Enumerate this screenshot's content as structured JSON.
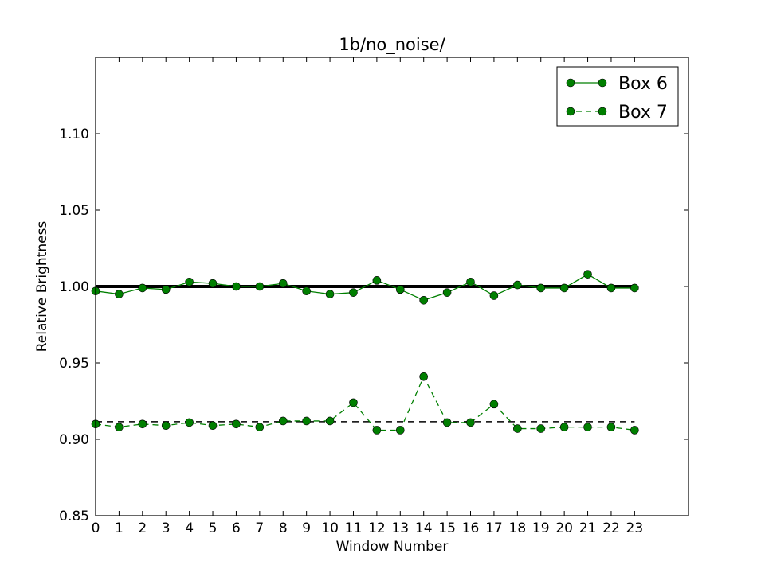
{
  "chart_data": {
    "type": "line",
    "title": "1b/no_noise/",
    "xlabel": "Window Number",
    "ylabel": "Relative Brightness",
    "xlim": [
      0,
      25.3
    ],
    "ylim": [
      0.85,
      1.15
    ],
    "x_ticks": [
      "0",
      "1",
      "2",
      "3",
      "4",
      "5",
      "6",
      "7",
      "8",
      "9",
      "10",
      "11",
      "12",
      "13",
      "14",
      "15",
      "16",
      "17",
      "18",
      "19",
      "20",
      "21",
      "22",
      "23"
    ],
    "y_ticks": [
      "0.85",
      "0.90",
      "0.95",
      "1.00",
      "1.05",
      "1.10"
    ],
    "x": [
      0,
      1,
      2,
      3,
      4,
      5,
      6,
      7,
      8,
      9,
      10,
      11,
      12,
      13,
      14,
      15,
      16,
      17,
      18,
      19,
      20,
      21,
      22,
      23
    ],
    "series": [
      {
        "name": "Box 6",
        "style": "solid",
        "color": "#007f00",
        "values": [
          0.997,
          0.995,
          0.999,
          0.998,
          1.003,
          1.002,
          1.0,
          1.0,
          1.002,
          0.997,
          0.995,
          0.996,
          1.004,
          0.998,
          0.991,
          0.996,
          1.003,
          0.994,
          1.001,
          0.999,
          0.999,
          1.008,
          0.999,
          0.999
        ]
      },
      {
        "name": "Box 7",
        "style": "dashed",
        "color": "#007f00",
        "values": [
          0.91,
          0.908,
          0.91,
          0.909,
          0.911,
          0.909,
          0.91,
          0.908,
          0.912,
          0.912,
          0.912,
          0.924,
          0.906,
          0.906,
          0.941,
          0.911,
          0.911,
          0.923,
          0.907,
          0.907,
          0.908,
          0.908,
          0.908,
          0.906
        ]
      }
    ],
    "reference_lines": [
      {
        "y": 1.0,
        "style": "solid-thick",
        "color": "#000000"
      },
      {
        "y": 0.9115,
        "style": "dashed",
        "color": "#000000"
      }
    ],
    "grid": false,
    "legend_placement": "top-right"
  }
}
